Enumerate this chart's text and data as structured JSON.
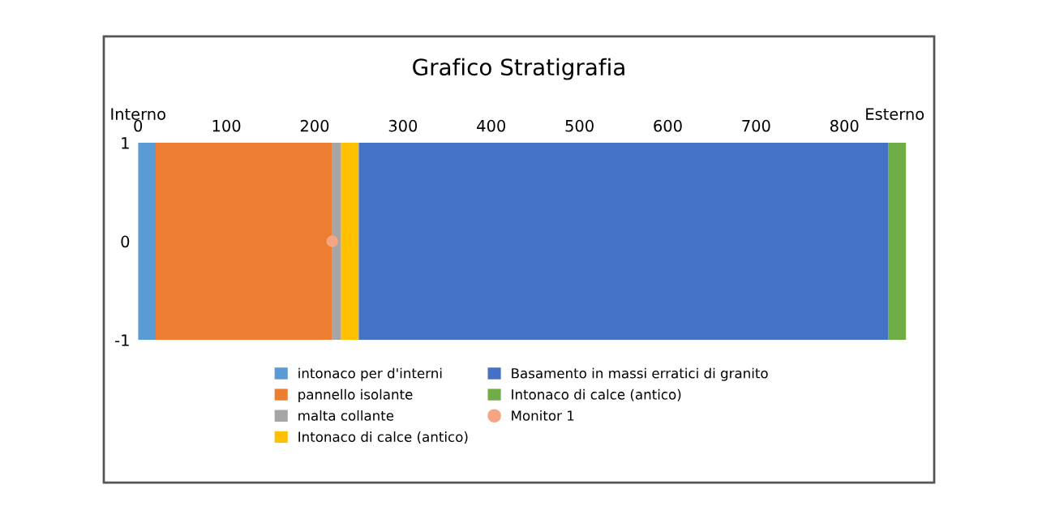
{
  "chart_data": {
    "type": "bar",
    "orientation": "horizontal",
    "stacked": true,
    "title": "Grafico Stratigrafia",
    "categories": [
      "1",
      "0",
      "-1"
    ],
    "series": [
      {
        "name": "intonaco per d'interni",
        "color": "#5b9bd5",
        "values": [
          null,
          20,
          null
        ]
      },
      {
        "name": "pannello isolante",
        "color": "#ed7d31",
        "values": [
          null,
          200,
          null
        ]
      },
      {
        "name": "malta collante",
        "color": "#a5a5a5",
        "values": [
          null,
          10,
          null
        ]
      },
      {
        "name": "Intonaco di calce (antico)",
        "color": "#ffc000",
        "values": [
          null,
          20,
          null
        ]
      },
      {
        "name": "Basamento in massi erratici di granito",
        "color": "#4472c4",
        "values": [
          null,
          600,
          null
        ]
      },
      {
        "name": "Intonaco di calce (antico)",
        "color": "#70ad47",
        "values": [
          null,
          20,
          null
        ]
      },
      {
        "name": "Monitor 1",
        "type": "scatter",
        "color": "#f4a582",
        "values": [
          null,
          220,
          null
        ],
        "marker": "circle"
      }
    ],
    "xlim": [
      0,
      870
    ],
    "xticks": [
      0,
      100,
      200,
      300,
      400,
      500,
      600,
      700,
      800
    ],
    "annotations": [
      "Interno",
      "Esterno"
    ],
    "grid": false,
    "legend": "bottom"
  }
}
